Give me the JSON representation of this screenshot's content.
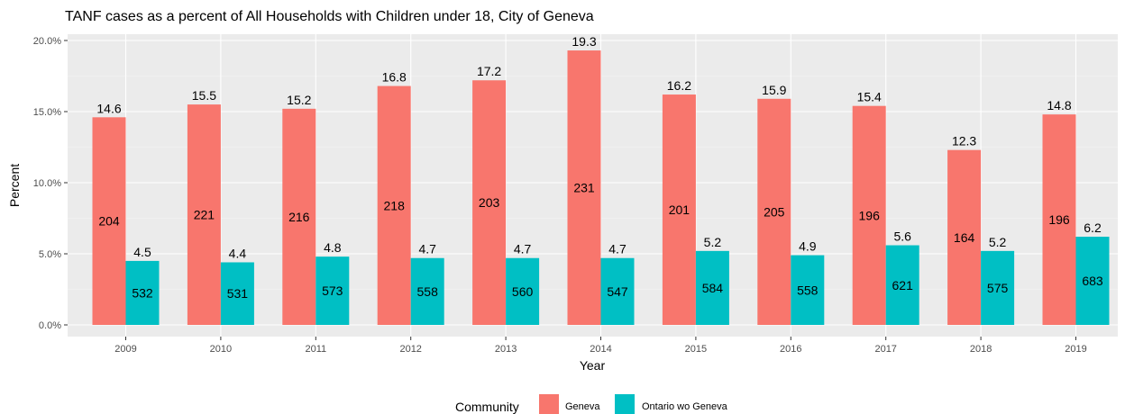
{
  "chart_data": {
    "type": "bar",
    "title": "TANF cases as a percent of All Households with Children under 18, City of Geneva",
    "xlabel": "Year",
    "ylabel": "Percent",
    "categories": [
      "2009",
      "2010",
      "2011",
      "2012",
      "2013",
      "2014",
      "2015",
      "2016",
      "2017",
      "2018",
      "2019"
    ],
    "ylim": [
      0,
      20
    ],
    "yticks": [
      0,
      5,
      10,
      15,
      20
    ],
    "ytick_labels": [
      "0.0%",
      "5.0%",
      "10.0%",
      "15.0%",
      "20.0%"
    ],
    "grid": true,
    "legend": {
      "title": "Community",
      "placement": "bottom"
    },
    "series": [
      {
        "name": "Geneva",
        "color": "#F8766D",
        "values": [
          14.6,
          15.5,
          15.2,
          16.8,
          17.2,
          19.3,
          16.2,
          15.9,
          15.4,
          12.3,
          14.8
        ],
        "value_labels": [
          "14.6",
          "15.5",
          "15.2",
          "16.8",
          "17.2",
          "19.3",
          "16.2",
          "15.9",
          "15.4",
          "12.3",
          "14.8"
        ],
        "case_counts": [
          "204",
          "221",
          "216",
          "218",
          "203",
          "231",
          "201",
          "205",
          "196",
          "164",
          "196"
        ]
      },
      {
        "name": "Ontario wo Geneva",
        "color": "#00BFC4",
        "values": [
          4.5,
          4.4,
          4.8,
          4.7,
          4.7,
          4.7,
          5.2,
          4.9,
          5.6,
          5.2,
          6.2
        ],
        "value_labels": [
          "4.5",
          "4.4",
          "4.8",
          "4.7",
          "4.7",
          "4.7",
          "5.2",
          "4.9",
          "5.6",
          "5.2",
          "6.2"
        ],
        "case_counts": [
          "532",
          "531",
          "573",
          "558",
          "560",
          "547",
          "584",
          "558",
          "621",
          "575",
          "683"
        ]
      }
    ]
  }
}
